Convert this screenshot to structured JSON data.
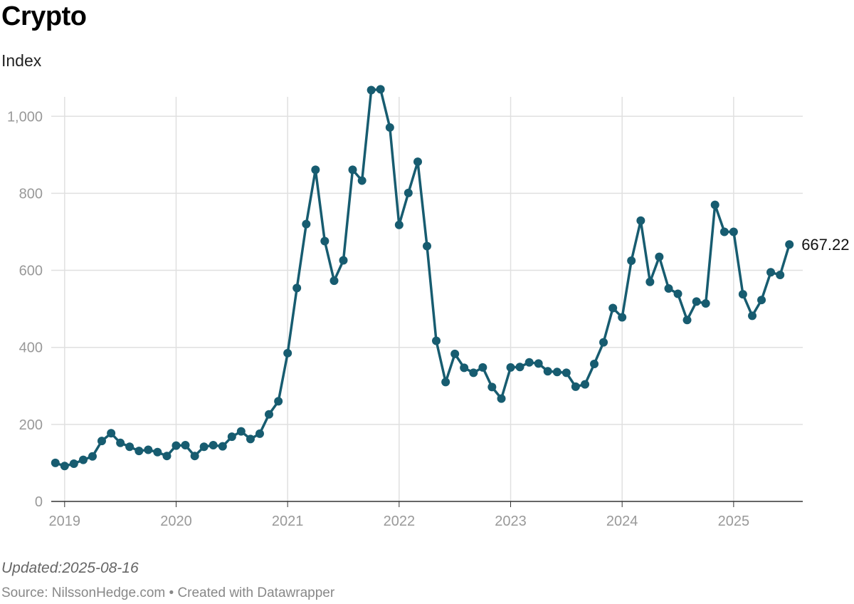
{
  "header": {
    "title": "Crypto",
    "subtitle": "Index"
  },
  "footer": {
    "updated": "Updated:2025-08-16",
    "source_prefix": "Source: ",
    "source_name": "NilssonHedge.com",
    "source_suffix": " • Created with Datawrapper"
  },
  "colors": {
    "line": "#175c70",
    "grid": "#e0e0e0",
    "axis": "#333333"
  },
  "chart_data": {
    "type": "line",
    "title": "Crypto",
    "subtitle": "Index",
    "ylim": [
      0,
      1080
    ],
    "yticks": [
      0,
      200,
      400,
      600,
      800,
      1000
    ],
    "ytick_labels": [
      "0",
      "200",
      "400",
      "600",
      "800",
      "1,000"
    ],
    "xlim": [
      2018.88,
      2025.62
    ],
    "xticks": [
      2019,
      2020,
      2021,
      2022,
      2023,
      2024,
      2025
    ],
    "xtick_labels": [
      "2019",
      "2020",
      "2021",
      "2022",
      "2023",
      "2024",
      "2025"
    ],
    "grid": true,
    "end_label": "667.22",
    "series": [
      {
        "x": [
          2018.917,
          2019.0,
          2019.083,
          2019.167,
          2019.25,
          2019.333,
          2019.417,
          2019.5,
          2019.583,
          2019.667,
          2019.75,
          2019.833,
          2019.917,
          2020.0,
          2020.083,
          2020.167,
          2020.25,
          2020.333,
          2020.417,
          2020.5,
          2020.583,
          2020.667,
          2020.75,
          2020.833,
          2020.917,
          2021.0,
          2021.083,
          2021.167,
          2021.25,
          2021.333,
          2021.417,
          2021.5,
          2021.583,
          2021.667,
          2021.75,
          2021.833,
          2021.917,
          2022.0,
          2022.083,
          2022.167,
          2022.25,
          2022.333,
          2022.417,
          2022.5,
          2022.583,
          2022.667,
          2022.75,
          2022.833,
          2022.917,
          2023.0,
          2023.083,
          2023.167,
          2023.25,
          2023.333,
          2023.417,
          2023.5,
          2023.583,
          2023.667,
          2023.75,
          2023.833,
          2023.917,
          2024.0,
          2024.083,
          2024.167,
          2024.25,
          2024.333,
          2024.417,
          2024.5,
          2024.583,
          2024.667,
          2024.75,
          2024.833,
          2024.917,
          2025.0,
          2025.083,
          2025.167,
          2025.25,
          2025.333,
          2025.417,
          2025.5
        ],
        "values": [
          100,
          92,
          98,
          108,
          117,
          157,
          177,
          152,
          142,
          131,
          134,
          128,
          118,
          145,
          146,
          118,
          142,
          146,
          143,
          168,
          182,
          162,
          176,
          226,
          260,
          385,
          554,
          720,
          861,
          676,
          573,
          626,
          861,
          833,
          1068,
          1070,
          971,
          718,
          801,
          882,
          663,
          417,
          310,
          383,
          347,
          334,
          348,
          297,
          267,
          348,
          349,
          361,
          358,
          338,
          336,
          334,
          298,
          304,
          357,
          413,
          502,
          478,
          625,
          729,
          570,
          635,
          553,
          539,
          471,
          519,
          514,
          770,
          700,
          700,
          538,
          482,
          523,
          595,
          588,
          667.22
        ]
      }
    ]
  }
}
